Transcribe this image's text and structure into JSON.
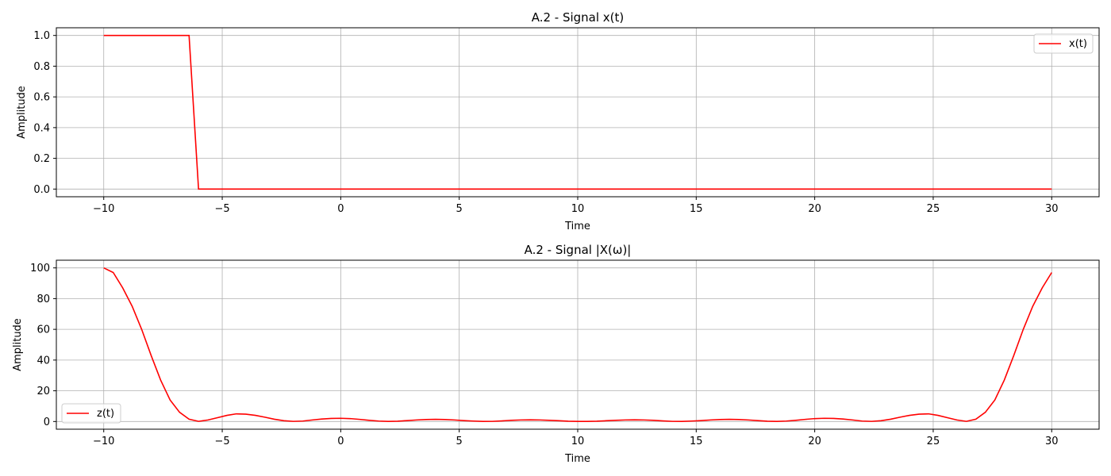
{
  "chart_data": [
    {
      "type": "line",
      "title": "A.2 - Signal x(t)",
      "xlabel": "Time",
      "ylabel": "Amplitude",
      "x": [
        -10,
        -9.6,
        -9.2,
        -8.8,
        -8.4,
        -8,
        -7.6,
        -7.2,
        -6.8,
        -6.4,
        -6,
        -5.6,
        -5.2,
        -4.8,
        -4.4,
        -4,
        -3.6,
        -3.2,
        -2.8,
        -2.4,
        -2,
        -1.6,
        -1.2,
        -0.8,
        -0.4,
        0,
        0.4,
        0.8,
        1.2,
        1.6,
        2,
        2.4,
        2.8,
        3.2,
        3.6,
        4,
        4.4,
        4.8,
        5.2,
        5.6,
        6,
        6.4,
        6.8,
        7.2,
        7.6,
        8,
        8.4,
        8.8,
        9.2,
        9.6,
        10,
        10.4,
        10.8,
        11.2,
        11.6,
        12,
        12.4,
        12.8,
        13.2,
        13.6,
        14,
        14.4,
        14.8,
        15.2,
        15.6,
        16,
        16.4,
        16.8,
        17.2,
        17.6,
        18,
        18.4,
        18.8,
        19.2,
        19.6,
        20,
        20.4,
        20.8,
        21.2,
        21.6,
        22,
        22.4,
        22.8,
        23.2,
        23.6,
        24,
        24.4,
        24.8,
        25.2,
        25.6,
        26,
        26.4,
        26.8,
        27.2,
        27.6,
        28,
        28.4,
        28.8,
        29.2,
        29.6,
        30
      ],
      "series": [
        {
          "name": "x(t)",
          "color": "#ff0000",
          "values": [
            1,
            1,
            1,
            1,
            1,
            1,
            1,
            1,
            1,
            1,
            0,
            0,
            0,
            0,
            0,
            0,
            0,
            0,
            0,
            0,
            0,
            0,
            0,
            0,
            0,
            0,
            0,
            0,
            0,
            0,
            0,
            0,
            0,
            0,
            0,
            0,
            0,
            0,
            0,
            0,
            0,
            0,
            0,
            0,
            0,
            0,
            0,
            0,
            0,
            0,
            0,
            0,
            0,
            0,
            0,
            0,
            0,
            0,
            0,
            0,
            0,
            0,
            0,
            0,
            0,
            0,
            0,
            0,
            0,
            0,
            0,
            0,
            0,
            0,
            0,
            0,
            0,
            0,
            0,
            0,
            0,
            0,
            0,
            0,
            0,
            0,
            0,
            0,
            0,
            0,
            0,
            0,
            0,
            0,
            0,
            0,
            0,
            0,
            0,
            0,
            0
          ]
        }
      ],
      "xlim": [
        -12,
        32
      ],
      "ylim": [
        -0.05,
        1.05
      ],
      "xticks": [
        {
          "value": -10,
          "label": "−10"
        },
        {
          "value": -5,
          "label": "−5"
        },
        0,
        5,
        10,
        15,
        20,
        25,
        30
      ],
      "yticks": [
        {
          "value": 0,
          "label": "0.0"
        },
        0.2,
        0.4,
        0.6,
        0.8,
        {
          "value": 1,
          "label": "1.0"
        }
      ],
      "grid": true,
      "legend": "upper-right"
    },
    {
      "type": "line",
      "title": "A.2 - Signal |X(ω)|",
      "xlabel": "Time",
      "ylabel": "Amplitude",
      "x": [
        -10,
        -9.6,
        -9.2,
        -8.8,
        -8.4,
        -8,
        -7.6,
        -7.2,
        -6.8,
        -6.4,
        -6,
        -5.6,
        -5.2,
        -4.8,
        -4.4,
        -4,
        -3.6,
        -3.2,
        -2.8,
        -2.4,
        -2,
        -1.6,
        -1.2,
        -0.8,
        -0.4,
        0,
        0.4,
        0.8,
        1.2,
        1.6,
        2,
        2.4,
        2.8,
        3.2,
        3.6,
        4,
        4.4,
        4.8,
        5.2,
        5.6,
        6,
        6.4,
        6.8,
        7.2,
        7.6,
        8,
        8.4,
        8.8,
        9.2,
        9.6,
        10,
        10.4,
        10.8,
        11.2,
        11.6,
        12,
        12.4,
        12.8,
        13.2,
        13.6,
        14,
        14.4,
        14.8,
        15.2,
        15.6,
        16,
        16.4,
        16.8,
        17.2,
        17.6,
        18,
        18.4,
        18.8,
        19.2,
        19.6,
        20,
        20.4,
        20.8,
        21.2,
        21.6,
        22,
        22.4,
        22.8,
        23.2,
        23.6,
        24,
        24.4,
        24.8,
        25.2,
        25.6,
        26,
        26.4,
        26.8,
        27.2,
        27.6,
        28,
        28.4,
        28.8,
        29.2,
        29.6,
        30
      ],
      "series": [
        {
          "name": "z(t)",
          "color": "#ff0000",
          "values": [
            100,
            97,
            87,
            75,
            60,
            43,
            27,
            14,
            6,
            1.5,
            0.1,
            1,
            2.5,
            4,
            5,
            4.8,
            4,
            2.8,
            1.5,
            0.5,
            0.1,
            0.3,
            1,
            1.6,
            2,
            2.1,
            1.9,
            1.4,
            0.8,
            0.3,
            0.05,
            0.2,
            0.6,
            1,
            1.3,
            1.4,
            1.3,
            1,
            0.6,
            0.3,
            0.05,
            0.1,
            0.4,
            0.8,
            1,
            1.1,
            1,
            0.8,
            0.5,
            0.2,
            0.05,
            0.05,
            0.2,
            0.5,
            0.8,
            1,
            1.1,
            1,
            0.8,
            0.4,
            0.1,
            0.05,
            0.3,
            0.6,
            1,
            1.3,
            1.4,
            1.3,
            1,
            0.6,
            0.2,
            0.05,
            0.3,
            0.8,
            1.4,
            1.9,
            2.1,
            2,
            1.6,
            1,
            0.3,
            0.1,
            0.5,
            1.5,
            2.8,
            4,
            4.8,
            5,
            4,
            2.5,
            1,
            0.1,
            1.5,
            6,
            14,
            27,
            43,
            60,
            75,
            87,
            97
          ]
        }
      ],
      "xlim": [
        -12,
        32
      ],
      "ylim": [
        -5,
        105
      ],
      "xticks": [
        {
          "value": -10,
          "label": "−10"
        },
        {
          "value": -5,
          "label": "−5"
        },
        0,
        5,
        10,
        15,
        20,
        25,
        30
      ],
      "yticks": [
        0,
        20,
        40,
        60,
        80,
        100
      ],
      "grid": true,
      "legend": "lower-left"
    }
  ]
}
